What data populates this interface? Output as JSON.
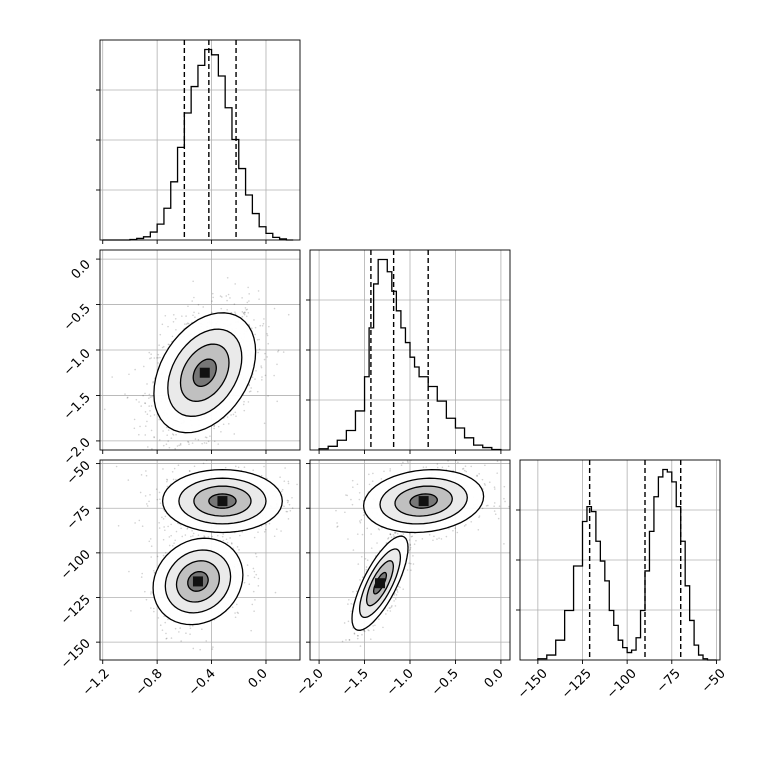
{
  "chart_data": {
    "type": "corner",
    "grid": true,
    "axes_tick_labels": {
      "x_param1": [
        "−1.2",
        "−0.8",
        "−0.4",
        "0.0"
      ],
      "x_param2": [
        "−2.0",
        "−1.5",
        "−1.0",
        "−0.5",
        "0.0"
      ],
      "x_param3": [
        "−150",
        "−125",
        "−100",
        "−75",
        "−50"
      ],
      "y_param2": [
        "0.0",
        "−0.5",
        "−1.0",
        "−1.5",
        "−2.0"
      ],
      "y_param3": [
        "−50",
        "−75",
        "−100",
        "−125",
        "−150"
      ]
    },
    "ranges": {
      "param1": [
        -1.22,
        0.25
      ],
      "param2": [
        -2.1,
        0.1
      ],
      "param3": [
        -160,
        -48
      ]
    },
    "ticks": {
      "param1": [
        -1.2,
        -0.8,
        -0.4,
        0.0
      ],
      "param2": [
        -2.0,
        -1.5,
        -1.0,
        -0.5,
        0.0
      ],
      "param3": [
        -150,
        -125,
        -100,
        -75,
        -50
      ]
    },
    "quantiles": {
      "param1": [
        -0.6,
        -0.42,
        -0.22
      ],
      "param2": [
        -1.43,
        -1.18,
        -0.8
      ],
      "param3": [
        -121,
        -90,
        -70
      ]
    },
    "hist_param1": {
      "bin_edges": [
        -1.2,
        -1.1,
        -1.0,
        -0.95,
        -0.9,
        -0.85,
        -0.8,
        -0.75,
        -0.7,
        -0.65,
        -0.6,
        -0.55,
        -0.5,
        -0.45,
        -0.4,
        -0.35,
        -0.3,
        -0.25,
        -0.2,
        -0.15,
        -0.1,
        -0.05,
        0.0,
        0.05,
        0.1,
        0.15,
        0.2
      ],
      "counts": [
        0,
        0,
        0.2,
        0.6,
        1.2,
        3,
        6,
        12,
        22,
        35,
        48,
        58,
        66,
        72,
        70,
        62,
        50,
        38,
        27,
        17,
        10,
        5,
        2.5,
        1,
        0.4,
        0
      ]
    },
    "hist_param2": {
      "bin_edges": [
        -2.0,
        -1.9,
        -1.8,
        -1.7,
        -1.6,
        -1.5,
        -1.45,
        -1.4,
        -1.35,
        -1.3,
        -1.25,
        -1.2,
        -1.15,
        -1.1,
        -1.05,
        -1.0,
        -0.95,
        -0.9,
        -0.8,
        -0.7,
        -0.6,
        -0.5,
        -0.4,
        -0.3,
        -0.2,
        -0.1,
        0.0
      ],
      "counts": [
        0.5,
        1.5,
        4,
        8,
        16,
        30,
        50,
        68,
        78,
        78,
        73,
        65,
        57,
        50,
        44,
        38,
        34,
        30,
        26,
        20,
        13,
        9,
        5,
        2,
        1,
        0.2
      ]
    },
    "hist_param3": {
      "bin_edges": [
        -150,
        -145,
        -140,
        -135,
        -130,
        -125,
        -122.5,
        -120,
        -117.5,
        -115,
        -112.5,
        -110,
        -107.5,
        -105,
        -102.5,
        -100,
        -97.5,
        -95,
        -92.5,
        -90,
        -87.5,
        -85,
        -82.5,
        -80,
        -77.5,
        -75,
        -72.5,
        -70,
        -67.5,
        -65,
        -62.5,
        -60,
        -57.5,
        -55,
        -50
      ],
      "counts": [
        0.5,
        2,
        8,
        20,
        38,
        56,
        62,
        60,
        48,
        40,
        32,
        20,
        14,
        8,
        5,
        3,
        4,
        9,
        20,
        36,
        52,
        66,
        74,
        77,
        76,
        72,
        62,
        48,
        30,
        16,
        6,
        2,
        0.5,
        0
      ]
    },
    "pair_12": {
      "modes": [
        {
          "x": -0.45,
          "y": -1.25,
          "sx": 0.17,
          "sy": 0.3,
          "rho": 0.35,
          "w": 1.0
        }
      ]
    },
    "pair_13": {
      "modes": [
        {
          "x": -0.32,
          "y": -71,
          "sx": 0.2,
          "sy": 8,
          "rho": 0.0,
          "w": 0.55
        },
        {
          "x": -0.5,
          "y": -116,
          "sx": 0.15,
          "sy": 11,
          "rho": 0.15,
          "w": 0.45
        }
      ]
    },
    "pair_23": {
      "modes": [
        {
          "x": -0.85,
          "y": -71,
          "sx": 0.3,
          "sy": 8,
          "rho": 0.15,
          "w": 0.55
        },
        {
          "x": -1.33,
          "y": -117,
          "sx": 0.14,
          "sy": 12,
          "rho": 0.75,
          "w": 0.45
        }
      ]
    }
  }
}
